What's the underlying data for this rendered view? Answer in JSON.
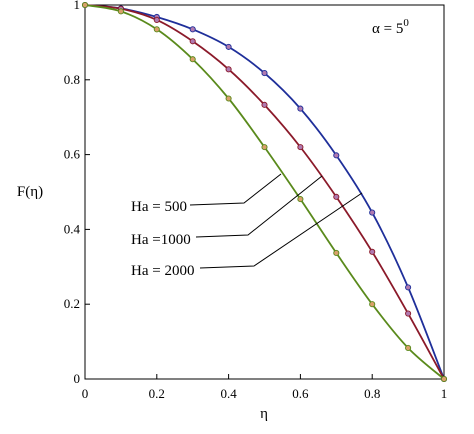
{
  "chart_data": {
    "type": "line",
    "xlabel": "η",
    "ylabel": "F(η)",
    "xlim": [
      0,
      1
    ],
    "ylim": [
      0,
      1
    ],
    "x_ticks": [
      0,
      0.2,
      0.4,
      0.6,
      0.8,
      1
    ],
    "x_tick_labels": [
      "0",
      "0.2",
      "0.4",
      "0.6",
      "0.8",
      "1"
    ],
    "y_ticks": [
      0,
      0.2,
      0.4,
      0.6,
      0.8,
      1
    ],
    "y_tick_labels": [
      "0",
      "0.2",
      "0.4",
      "0.6",
      "0.8",
      "1"
    ],
    "grid": false,
    "annotation": {
      "base": "α = 5",
      "sup": "0"
    },
    "series": [
      {
        "name": "Ha = 500",
        "color": "#1f2f9a",
        "marker_face": "#b07ab0",
        "x": [
          0,
          0.1,
          0.2,
          0.3,
          0.4,
          0.5,
          0.6,
          0.7,
          0.8,
          0.9,
          1.0
        ],
        "y": [
          1.0,
          0.991,
          0.968,
          0.935,
          0.888,
          0.818,
          0.723,
          0.598,
          0.445,
          0.245,
          0.0
        ]
      },
      {
        "name": "Ha =1000",
        "color": "#8b1a2a",
        "marker_face": "#b07ab0",
        "x": [
          0,
          0.1,
          0.2,
          0.3,
          0.4,
          0.5,
          0.6,
          0.7,
          0.8,
          0.9,
          1.0
        ],
        "y": [
          1.0,
          0.99,
          0.96,
          0.903,
          0.828,
          0.733,
          0.62,
          0.487,
          0.34,
          0.175,
          0.0
        ]
      },
      {
        "name": "Ha = 2000",
        "color": "#5a8a1c",
        "marker_face": "#d9a06a",
        "x": [
          0,
          0.1,
          0.2,
          0.3,
          0.4,
          0.5,
          0.6,
          0.7,
          0.8,
          0.9,
          1.0
        ],
        "y": [
          1.0,
          0.983,
          0.935,
          0.855,
          0.75,
          0.62,
          0.481,
          0.337,
          0.2,
          0.083,
          0.0
        ]
      }
    ]
  }
}
